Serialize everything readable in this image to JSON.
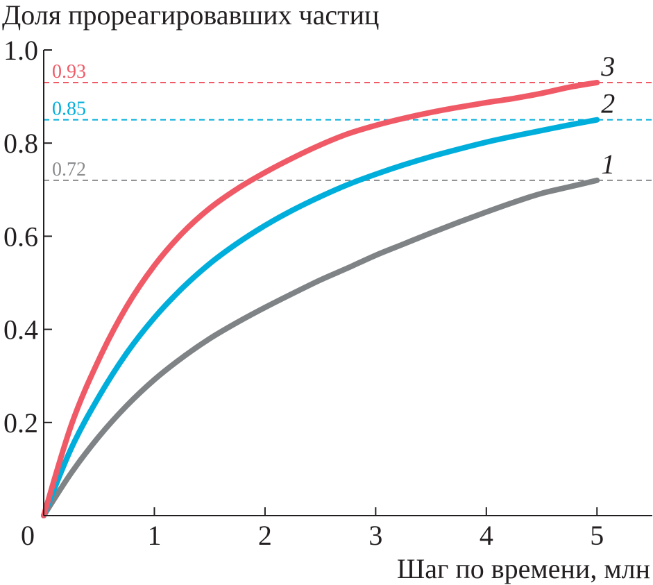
{
  "chart_data": {
    "type": "line",
    "ylabel": "Доля прореагировавших частиц",
    "xlabel": "Шаг по времени, млн",
    "xlim": [
      0,
      5.5
    ],
    "ylim": [
      0,
      1.0
    ],
    "x_ticks": [
      {
        "value": 0,
        "label": "0"
      },
      {
        "value": 1,
        "label": "1"
      },
      {
        "value": 2,
        "label": "2"
      },
      {
        "value": 3,
        "label": "3"
      },
      {
        "value": 4,
        "label": "4"
      },
      {
        "value": 5,
        "label": "5"
      }
    ],
    "y_ticks": [
      {
        "value": 0.2,
        "label": "0.2"
      },
      {
        "value": 0.4,
        "label": "0.4"
      },
      {
        "value": 0.6,
        "label": "0.6"
      },
      {
        "value": 0.8,
        "label": "0.8"
      },
      {
        "value": 1.0,
        "label": "1.0"
      }
    ],
    "grid": false,
    "series": [
      {
        "label": "1",
        "color": "#7f8385",
        "x": [
          0,
          0.25,
          0.5,
          0.75,
          1,
          1.25,
          1.5,
          1.75,
          2,
          2.25,
          2.5,
          2.75,
          3,
          3.25,
          3.5,
          3.75,
          4,
          4.25,
          4.5,
          4.75,
          5
        ],
        "y": [
          0,
          0.092,
          0.17,
          0.236,
          0.292,
          0.339,
          0.38,
          0.415,
          0.447,
          0.477,
          0.506,
          0.532,
          0.559,
          0.583,
          0.607,
          0.63,
          0.652,
          0.673,
          0.692,
          0.706,
          0.72
        ]
      },
      {
        "label": "2",
        "color": "#00aedb",
        "x": [
          0,
          0.25,
          0.5,
          0.75,
          1,
          1.25,
          1.5,
          1.75,
          2,
          2.25,
          2.5,
          2.75,
          3,
          3.25,
          3.5,
          3.75,
          4,
          4.25,
          4.5,
          4.75,
          5
        ],
        "y": [
          0,
          0.145,
          0.256,
          0.349,
          0.425,
          0.488,
          0.541,
          0.585,
          0.623,
          0.656,
          0.685,
          0.711,
          0.733,
          0.753,
          0.771,
          0.787,
          0.802,
          0.815,
          0.827,
          0.839,
          0.85
        ]
      },
      {
        "label": "3",
        "color": "#ef5a66",
        "x": [
          0,
          0.25,
          0.5,
          0.75,
          1,
          1.25,
          1.5,
          1.75,
          2,
          2.25,
          2.5,
          2.75,
          3,
          3.25,
          3.5,
          3.75,
          4,
          4.25,
          4.5,
          4.75,
          5
        ],
        "y": [
          0,
          0.195,
          0.336,
          0.449,
          0.537,
          0.606,
          0.66,
          0.702,
          0.737,
          0.768,
          0.796,
          0.82,
          0.838,
          0.853,
          0.866,
          0.877,
          0.887,
          0.896,
          0.907,
          0.92,
          0.93
        ]
      }
    ],
    "reference_lines": [
      {
        "y": 0.93,
        "label": "0.93",
        "color": "#ef5a66"
      },
      {
        "y": 0.85,
        "label": "0.85",
        "color": "#00aedb"
      },
      {
        "y": 0.72,
        "label": "0.72",
        "color": "#8a8c8e"
      }
    ]
  }
}
